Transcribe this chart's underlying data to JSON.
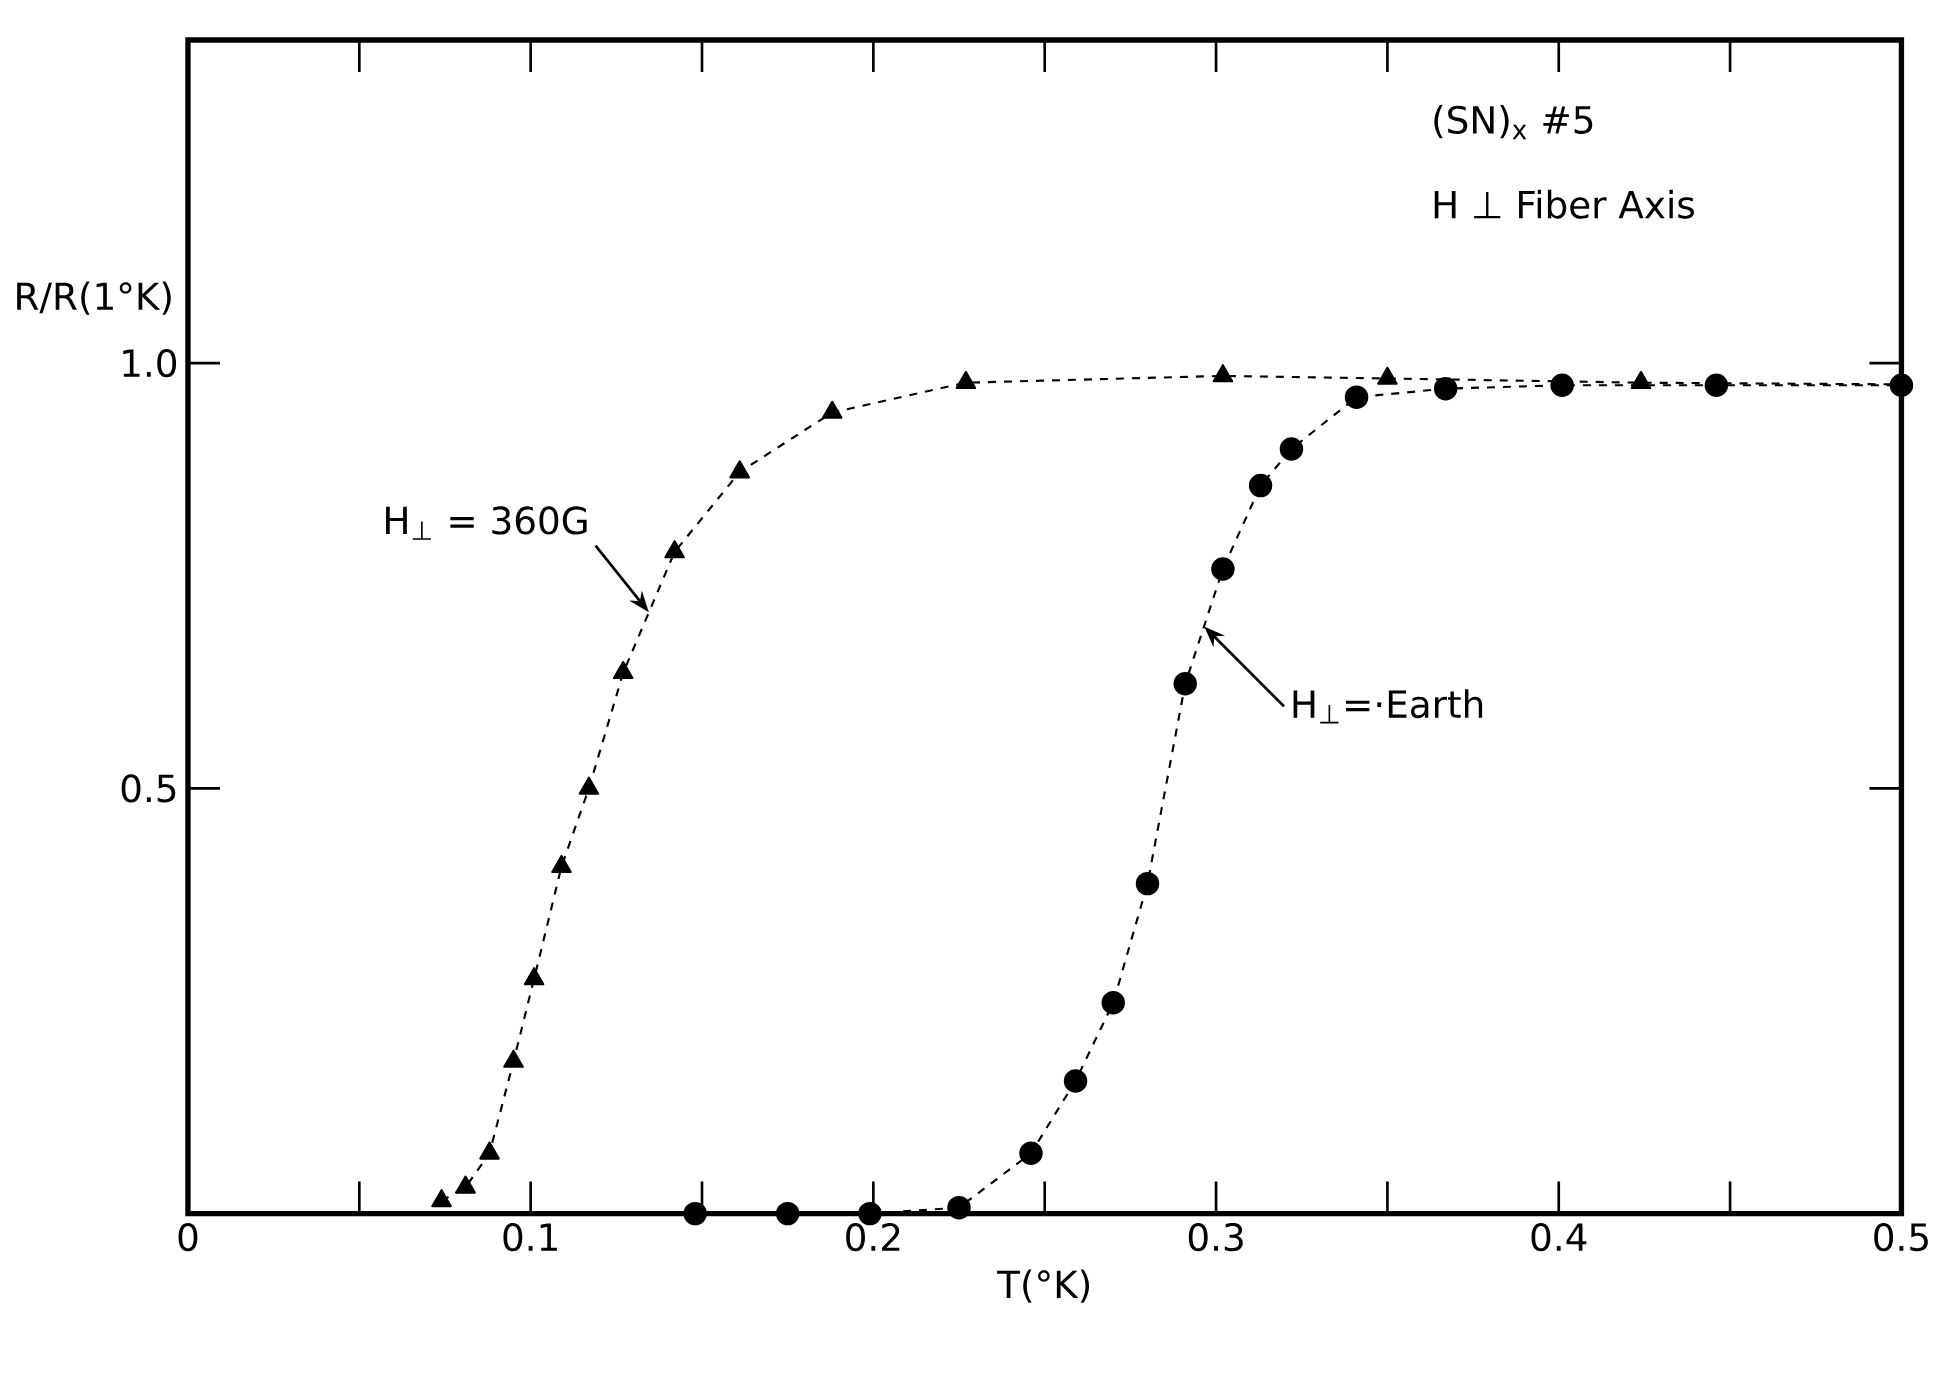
{
  "chart_data": {
    "type": "line",
    "xlabel": "T(°K)",
    "ylabel": "R/R(1°K)",
    "annotations": [
      "(SN)$_{x}$ #5",
      "H ⊥ Fiber Axis"
    ],
    "series": [
      {
        "name": "H$_{⊥}$ = 360G",
        "color": "#000000",
        "marker": "triangle",
        "x": [
          0.074,
          0.081,
          0.088,
          0.095,
          0.101,
          0.109,
          0.117,
          0.127,
          0.142,
          0.161,
          0.188,
          0.227,
          0.302,
          0.35,
          0.424,
          0.5
        ],
        "values": [
          0.015,
          0.031,
          0.071,
          0.179,
          0.276,
          0.408,
          0.5,
          0.636,
          0.778,
          0.872,
          0.942,
          0.977,
          0.985,
          0.982,
          0.977,
          0.975
        ]
      },
      {
        "name": "H$_{⊥}$=·Earth",
        "color": "#000000",
        "marker": "circle",
        "x": [
          0.148,
          0.175,
          0.199,
          0.225,
          0.246,
          0.259,
          0.27,
          0.28,
          0.291,
          0.302,
          0.313,
          0.322,
          0.341,
          0.367,
          0.401,
          0.446,
          0.5
        ],
        "values": [
          0.0,
          0.0,
          0.0,
          0.007,
          0.071,
          0.156,
          0.248,
          0.388,
          0.623,
          0.758,
          0.856,
          0.899,
          0.96,
          0.97,
          0.974,
          0.974,
          0.974
        ]
      }
    ],
    "line_style": "dashed",
    "grid": false,
    "xlim": [
      0,
      0.5
    ],
    "ylim": [
      0,
      1.38
    ],
    "xticks": [
      0,
      {
        "value": 0.05,
        "label": null
      },
      0.1,
      {
        "value": 0.15,
        "label": null
      },
      0.2,
      {
        "value": 0.25,
        "label": null
      },
      0.3,
      {
        "value": 0.35,
        "label": null
      },
      0.4,
      {
        "value": 0.45,
        "label": null
      },
      0.5
    ],
    "yticks": [
      0.5,
      {
        "value": 1.0,
        "label": "1.0"
      }
    ]
  }
}
